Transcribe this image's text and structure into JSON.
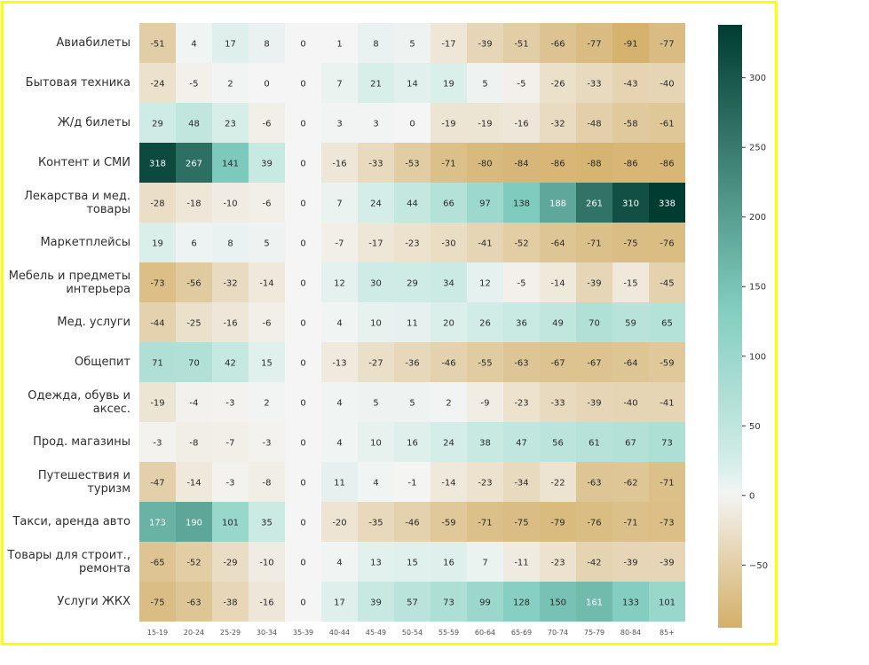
{
  "chart_data": {
    "type": "heatmap",
    "rows": [
      "Авиабилеты",
      "Бытовая техника",
      "Ж/д билеты",
      "Контент и СМИ",
      "Лекарства и мед. товары",
      "Маркетплейсы",
      "Мебель и предметы интерьера",
      "Мед. услуги",
      "Общепит",
      "Одежда, обувь и аксес.",
      "Прод. магазины",
      "Путешествия и туризм",
      "Такси, аренда авто",
      "Товары для строит., ремонта",
      "Услуги ЖКХ"
    ],
    "columns": [
      "15-19",
      "20-24",
      "25-29",
      "30-34",
      "35-39",
      "40-44",
      "45-49",
      "50-54",
      "55-59",
      "60-64",
      "65-69",
      "70-74",
      "75-79",
      "80-84",
      "85+"
    ],
    "values": [
      [
        -51,
        4,
        17,
        8,
        0,
        1,
        8,
        5,
        -17,
        -39,
        -51,
        -66,
        -77,
        -91,
        -77
      ],
      [
        -24,
        -5,
        2,
        0,
        0,
        7,
        21,
        14,
        19,
        5,
        -5,
        -26,
        -33,
        -43,
        -40
      ],
      [
        29,
        48,
        23,
        -6,
        0,
        3,
        3,
        0,
        -19,
        -19,
        -16,
        -32,
        -48,
        -58,
        -61
      ],
      [
        318,
        267,
        141,
        39,
        0,
        -16,
        -33,
        -53,
        -71,
        -80,
        -84,
        -86,
        -88,
        -86,
        -86
      ],
      [
        -28,
        -18,
        -10,
        -6,
        0,
        7,
        24,
        44,
        66,
        97,
        138,
        188,
        261,
        310,
        338
      ],
      [
        19,
        6,
        8,
        5,
        0,
        -7,
        -17,
        -23,
        -30,
        -41,
        -52,
        -64,
        -71,
        -75,
        -76
      ],
      [
        -73,
        -56,
        -32,
        -14,
        0,
        12,
        30,
        29,
        34,
        12,
        -5,
        -14,
        -39,
        -15,
        -45
      ],
      [
        -44,
        -25,
        -16,
        -6,
        0,
        4,
        10,
        11,
        20,
        26,
        36,
        49,
        70,
        59,
        65
      ],
      [
        71,
        70,
        42,
        15,
        0,
        -13,
        -27,
        -36,
        -46,
        -55,
        -63,
        -67,
        -67,
        -64,
        -59
      ],
      [
        -19,
        -4,
        -3,
        2,
        0,
        4,
        5,
        5,
        2,
        -9,
        -23,
        -33,
        -39,
        -40,
        -41
      ],
      [
        -3,
        -8,
        -7,
        -3,
        0,
        4,
        10,
        16,
        24,
        38,
        47,
        56,
        61,
        67,
        73
      ],
      [
        -47,
        -14,
        -3,
        -8,
        0,
        11,
        4,
        -1,
        -14,
        -23,
        -34,
        -22,
        -63,
        -62,
        -71
      ],
      [
        173,
        190,
        101,
        35,
        0,
        -20,
        -35,
        -46,
        -59,
        -71,
        -75,
        -79,
        -76,
        -71,
        -73
      ],
      [
        -65,
        -52,
        -29,
        -10,
        0,
        4,
        13,
        15,
        16,
        7,
        -11,
        -23,
        -42,
        -39,
        -39
      ],
      [
        -75,
        -63,
        -38,
        -16,
        0,
        17,
        39,
        57,
        73,
        99,
        128,
        150,
        161,
        133,
        101
      ]
    ],
    "colorbar": {
      "min": -95,
      "max": 338,
      "ticks": [
        300,
        250,
        200,
        150,
        100,
        50,
        0,
        -50
      ],
      "tick_labels": [
        "300",
        "250",
        "200",
        "150",
        "100",
        "50",
        "0",
        "−50"
      ]
    },
    "colors": {
      "negative": "#d4b06a",
      "zero": "#f5f5f5",
      "positive_mid": "#81cdbf",
      "positive_max": "#003c30"
    },
    "grid": false,
    "legend": "colorbar-right"
  }
}
